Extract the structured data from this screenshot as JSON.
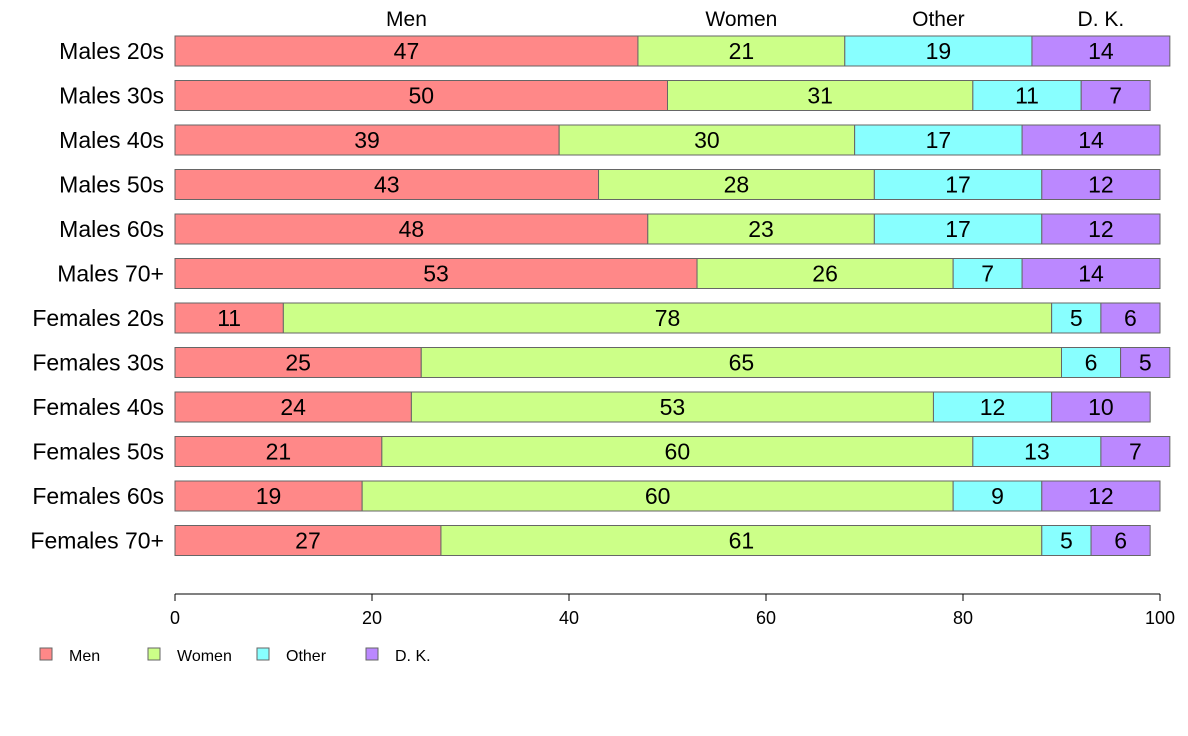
{
  "chart_data": {
    "type": "bar",
    "orientation": "horizontal",
    "stacked": true,
    "categories": [
      "Males 20s",
      "Males 30s",
      "Males 40s",
      "Males 50s",
      "Males 60s",
      "Males 70+",
      "Females 20s",
      "Females 30s",
      "Females 40s",
      "Females 50s",
      "Females 60s",
      "Females 70+"
    ],
    "series": [
      {
        "name": "Men",
        "color": "#ff8888",
        "values": [
          47,
          50,
          39,
          43,
          48,
          53,
          11,
          25,
          24,
          21,
          19,
          27
        ],
        "labels": [
          "47",
          "50",
          "39",
          "43",
          "48",
          "53",
          "11",
          "25",
          "24",
          "21",
          "19",
          "27"
        ]
      },
      {
        "name": "Women",
        "color": "#ccff88",
        "values": [
          21,
          31,
          30,
          28,
          23,
          26,
          78,
          65,
          53,
          60,
          60,
          61
        ],
        "labels": [
          "21",
          "31",
          "30",
          "28",
          "23",
          "26",
          "78",
          "65",
          "53",
          "60",
          "60",
          "61"
        ]
      },
      {
        "name": "Other",
        "color": "#88ffff",
        "values": [
          19,
          11,
          17,
          17,
          17,
          7,
          5,
          6,
          12,
          13,
          9,
          5
        ],
        "labels": [
          "19",
          "11",
          "17",
          "17",
          "17",
          "7",
          "5",
          "6",
          "12",
          "13",
          "9",
          "5"
        ]
      },
      {
        "name": "D. K.",
        "color": "#bb88ff",
        "values": [
          14,
          7,
          14,
          12,
          12,
          14,
          6,
          5,
          10,
          7,
          12,
          6
        ],
        "labels": [
          "14",
          "7",
          "14",
          "12",
          "12",
          "14",
          "6",
          "5",
          "10",
          "7",
          "12",
          "6"
        ]
      }
    ],
    "column_headers": [
      "Men",
      "Women",
      "Other",
      "D. K."
    ],
    "xlim": [
      0,
      100
    ],
    "xticks": [
      "0",
      "20",
      "40",
      "60",
      "80",
      "100"
    ],
    "title": "",
    "xlabel": "",
    "ylabel": "",
    "grid": false,
    "legend": {
      "position": "bottom-left",
      "entries": [
        "Men",
        "Women",
        "Other",
        "D. K."
      ]
    },
    "border_color": "#666666"
  }
}
